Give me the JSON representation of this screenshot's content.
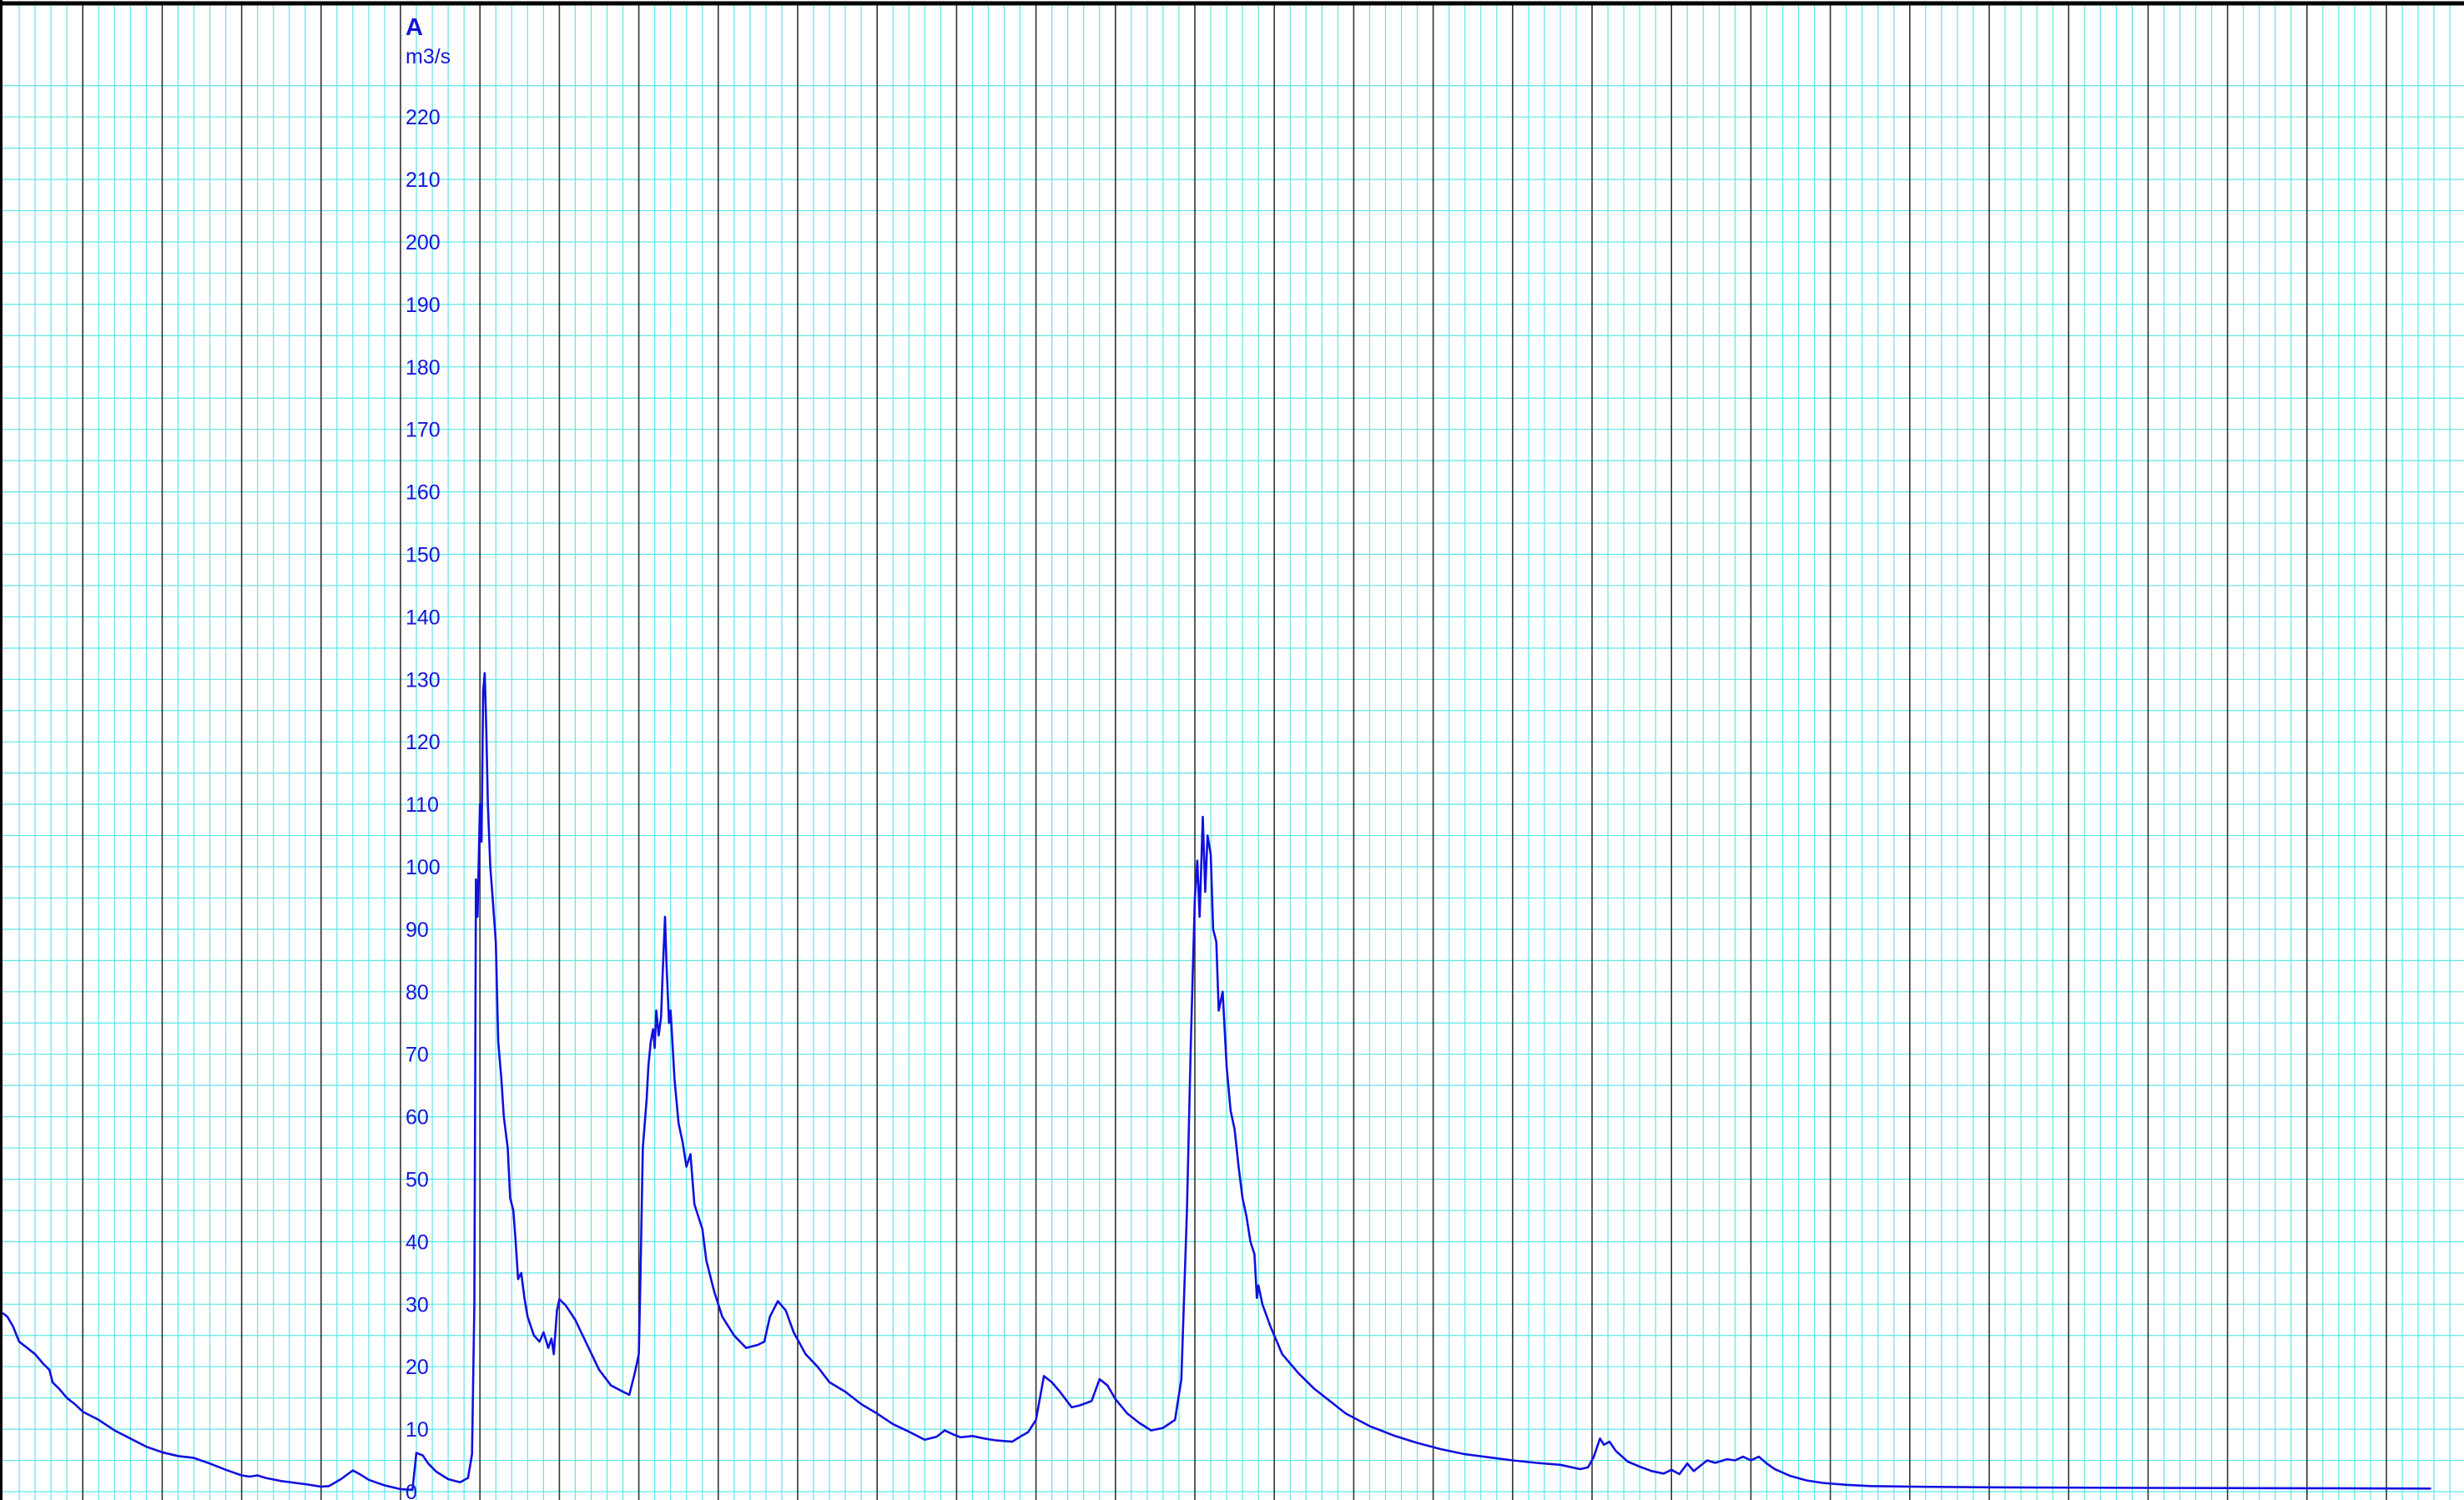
{
  "chart_data": {
    "type": "line",
    "axis_letter": "A",
    "unit": "m3/s",
    "ylim": [
      0,
      225
    ],
    "y_ticks": [
      0,
      10,
      20,
      30,
      40,
      50,
      60,
      70,
      80,
      90,
      100,
      110,
      120,
      130,
      140,
      150,
      160,
      170,
      180,
      190,
      200,
      210,
      220
    ],
    "xlim": [
      0,
      31
    ],
    "grid": true,
    "colors": {
      "line": "#1010e0",
      "labels": "#1515d8",
      "major_grid": "#333333",
      "minor_grid": "#5ee6e6",
      "frame": "#000000"
    },
    "series": [
      {
        "values": [
          [
            0.0,
            28.5
          ],
          [
            0.05,
            28.0
          ],
          [
            0.12,
            26.5
          ],
          [
            0.2,
            24.0
          ],
          [
            0.3,
            23.0
          ],
          [
            0.4,
            22.0
          ],
          [
            0.5,
            20.5
          ],
          [
            0.58,
            19.5
          ],
          [
            0.62,
            17.5
          ],
          [
            0.7,
            16.5
          ],
          [
            0.8,
            15.0
          ],
          [
            0.9,
            14.0
          ],
          [
            1.0,
            12.8
          ],
          [
            1.2,
            11.5
          ],
          [
            1.4,
            9.8
          ],
          [
            1.6,
            8.5
          ],
          [
            1.8,
            7.2
          ],
          [
            2.0,
            6.3
          ],
          [
            2.2,
            5.7
          ],
          [
            2.4,
            5.4
          ],
          [
            2.6,
            4.5
          ],
          [
            2.8,
            3.5
          ],
          [
            3.0,
            2.6
          ],
          [
            3.1,
            2.4
          ],
          [
            3.2,
            2.6
          ],
          [
            3.3,
            2.2
          ],
          [
            3.5,
            1.7
          ],
          [
            3.8,
            1.2
          ],
          [
            4.0,
            0.8
          ],
          [
            4.1,
            0.9
          ],
          [
            4.25,
            2.0
          ],
          [
            4.4,
            3.4
          ],
          [
            4.5,
            2.7
          ],
          [
            4.6,
            1.9
          ],
          [
            4.8,
            1.0
          ],
          [
            5.0,
            0.4
          ],
          [
            5.15,
            0.3
          ],
          [
            5.2,
            6.2
          ],
          [
            5.28,
            5.8
          ],
          [
            5.35,
            4.5
          ],
          [
            5.45,
            3.2
          ],
          [
            5.6,
            2.0
          ],
          [
            5.75,
            1.5
          ],
          [
            5.85,
            2.2
          ],
          [
            5.9,
            6.0
          ],
          [
            5.93,
            30.0
          ],
          [
            5.95,
            98.0
          ],
          [
            5.97,
            92.0
          ],
          [
            6.0,
            110.0
          ],
          [
            6.02,
            104.0
          ],
          [
            6.04,
            128.0
          ],
          [
            6.06,
            131.0
          ],
          [
            6.08,
            122.0
          ],
          [
            6.1,
            110.0
          ],
          [
            6.13,
            100.0
          ],
          [
            6.16,
            95.0
          ],
          [
            6.2,
            88.0
          ],
          [
            6.23,
            72.0
          ],
          [
            6.27,
            66.0
          ],
          [
            6.3,
            60.0
          ],
          [
            6.35,
            55.0
          ],
          [
            6.38,
            47.0
          ],
          [
            6.42,
            45.0
          ],
          [
            6.45,
            40.0
          ],
          [
            6.48,
            34.0
          ],
          [
            6.52,
            35.0
          ],
          [
            6.56,
            31.0
          ],
          [
            6.6,
            28.0
          ],
          [
            6.68,
            25.0
          ],
          [
            6.75,
            24.0
          ],
          [
            6.8,
            25.5
          ],
          [
            6.86,
            23.0
          ],
          [
            6.9,
            24.5
          ],
          [
            6.93,
            22.0
          ],
          [
            6.97,
            29.0
          ],
          [
            7.0,
            30.8
          ],
          [
            7.08,
            29.8
          ],
          [
            7.2,
            27.5
          ],
          [
            7.35,
            23.5
          ],
          [
            7.5,
            19.5
          ],
          [
            7.65,
            17.0
          ],
          [
            7.8,
            16.0
          ],
          [
            7.88,
            15.5
          ],
          [
            7.95,
            19.0
          ],
          [
            8.0,
            22.0
          ],
          [
            8.02,
            34.0
          ],
          [
            8.05,
            55.0
          ],
          [
            8.1,
            63.0
          ],
          [
            8.12,
            68.0
          ],
          [
            8.15,
            72.0
          ],
          [
            8.18,
            74.0
          ],
          [
            8.2,
            71.0
          ],
          [
            8.22,
            77.0
          ],
          [
            8.25,
            73.0
          ],
          [
            8.28,
            76.0
          ],
          [
            8.3,
            83.0
          ],
          [
            8.33,
            92.0
          ],
          [
            8.35,
            84.0
          ],
          [
            8.38,
            75.0
          ],
          [
            8.4,
            77.0
          ],
          [
            8.45,
            66.0
          ],
          [
            8.5,
            59.0
          ],
          [
            8.55,
            56.0
          ],
          [
            8.6,
            52.0
          ],
          [
            8.65,
            54.0
          ],
          [
            8.7,
            46.0
          ],
          [
            8.75,
            44.0
          ],
          [
            8.8,
            42.0
          ],
          [
            8.85,
            37.0
          ],
          [
            8.95,
            32.0
          ],
          [
            9.05,
            28.0
          ],
          [
            9.2,
            25.0
          ],
          [
            9.35,
            23.0
          ],
          [
            9.5,
            23.5
          ],
          [
            9.58,
            24.0
          ],
          [
            9.65,
            28.0
          ],
          [
            9.75,
            30.5
          ],
          [
            9.85,
            29.0
          ],
          [
            9.95,
            25.5
          ],
          [
            10.1,
            22.0
          ],
          [
            10.25,
            20.0
          ],
          [
            10.4,
            17.5
          ],
          [
            10.6,
            16.0
          ],
          [
            10.8,
            14.0
          ],
          [
            11.0,
            12.5
          ],
          [
            11.2,
            10.8
          ],
          [
            11.4,
            9.6
          ],
          [
            11.6,
            8.3
          ],
          [
            11.75,
            8.8
          ],
          [
            11.85,
            9.8
          ],
          [
            11.95,
            9.2
          ],
          [
            12.05,
            8.7
          ],
          [
            12.2,
            8.9
          ],
          [
            12.35,
            8.5
          ],
          [
            12.5,
            8.2
          ],
          [
            12.7,
            8.0
          ],
          [
            12.8,
            8.8
          ],
          [
            12.9,
            9.5
          ],
          [
            13.0,
            11.5
          ],
          [
            13.1,
            18.5
          ],
          [
            13.2,
            17.5
          ],
          [
            13.3,
            16.0
          ],
          [
            13.45,
            13.5
          ],
          [
            13.55,
            13.8
          ],
          [
            13.7,
            14.5
          ],
          [
            13.8,
            18.0
          ],
          [
            13.9,
            17.0
          ],
          [
            14.0,
            14.8
          ],
          [
            14.15,
            12.5
          ],
          [
            14.3,
            11.0
          ],
          [
            14.45,
            9.8
          ],
          [
            14.6,
            10.2
          ],
          [
            14.75,
            11.5
          ],
          [
            14.83,
            18.0
          ],
          [
            14.9,
            45.0
          ],
          [
            14.95,
            72.0
          ],
          [
            15.0,
            95.0
          ],
          [
            15.03,
            101.0
          ],
          [
            15.06,
            92.0
          ],
          [
            15.1,
            108.0
          ],
          [
            15.13,
            96.0
          ],
          [
            15.16,
            105.0
          ],
          [
            15.2,
            102.0
          ],
          [
            15.23,
            90.0
          ],
          [
            15.27,
            88.0
          ],
          [
            15.3,
            77.0
          ],
          [
            15.35,
            80.0
          ],
          [
            15.4,
            68.0
          ],
          [
            15.45,
            61.0
          ],
          [
            15.5,
            58.0
          ],
          [
            15.55,
            52.0
          ],
          [
            15.6,
            47.0
          ],
          [
            15.65,
            44.0
          ],
          [
            15.7,
            40.0
          ],
          [
            15.75,
            38.0
          ],
          [
            15.78,
            31.0
          ],
          [
            15.8,
            33.0
          ],
          [
            15.85,
            30.0
          ],
          [
            15.95,
            26.5
          ],
          [
            16.1,
            22.0
          ],
          [
            16.3,
            19.0
          ],
          [
            16.5,
            16.5
          ],
          [
            16.7,
            14.5
          ],
          [
            16.9,
            12.5
          ],
          [
            17.2,
            10.5
          ],
          [
            17.5,
            9.0
          ],
          [
            17.8,
            7.8
          ],
          [
            18.1,
            6.8
          ],
          [
            18.4,
            6.0
          ],
          [
            18.7,
            5.5
          ],
          [
            19.0,
            5.0
          ],
          [
            19.3,
            4.6
          ],
          [
            19.6,
            4.3
          ],
          [
            19.85,
            3.6
          ],
          [
            19.95,
            3.9
          ],
          [
            20.02,
            5.5
          ],
          [
            20.1,
            8.5
          ],
          [
            20.15,
            7.5
          ],
          [
            20.22,
            8.0
          ],
          [
            20.3,
            6.5
          ],
          [
            20.45,
            4.8
          ],
          [
            20.6,
            4.0
          ],
          [
            20.75,
            3.3
          ],
          [
            20.9,
            2.9
          ],
          [
            21.0,
            3.5
          ],
          [
            21.1,
            2.8
          ],
          [
            21.2,
            4.5
          ],
          [
            21.28,
            3.3
          ],
          [
            21.35,
            4.0
          ],
          [
            21.45,
            5.0
          ],
          [
            21.55,
            4.6
          ],
          [
            21.7,
            5.2
          ],
          [
            21.8,
            5.0
          ],
          [
            21.9,
            5.6
          ],
          [
            22.0,
            5.0
          ],
          [
            22.1,
            5.6
          ],
          [
            22.2,
            4.5
          ],
          [
            22.3,
            3.6
          ],
          [
            22.5,
            2.5
          ],
          [
            22.7,
            1.8
          ],
          [
            22.9,
            1.4
          ],
          [
            23.2,
            1.1
          ],
          [
            23.5,
            0.9
          ],
          [
            24.0,
            0.8
          ],
          [
            25.0,
            0.7
          ],
          [
            27.0,
            0.6
          ],
          [
            29.0,
            0.55
          ],
          [
            30.55,
            0.5
          ]
        ]
      }
    ]
  }
}
